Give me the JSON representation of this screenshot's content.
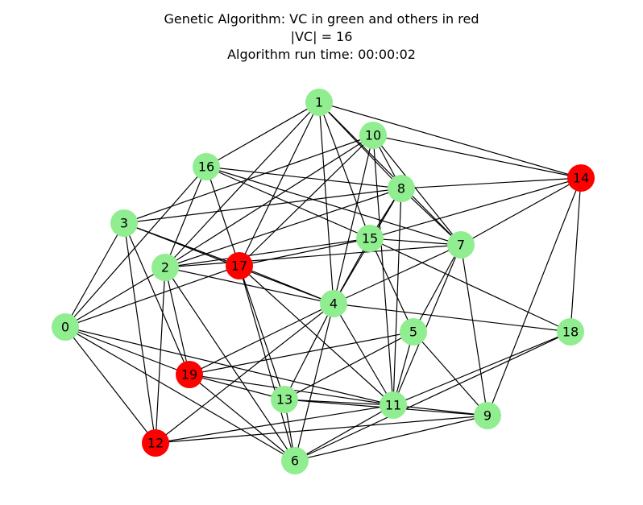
{
  "title": {
    "line1": "Genetic Algorithm: VC in green and others in red",
    "line2": "|VC| = 16",
    "line3": "Algorithm run time: 00:00:02"
  },
  "colors": {
    "vc_node": "#90ee90",
    "other_node": "#ff0000",
    "edge": "#000000"
  },
  "graph": {
    "nodes": [
      {
        "id": "0",
        "in_vc": true
      },
      {
        "id": "1",
        "in_vc": true
      },
      {
        "id": "2",
        "in_vc": true
      },
      {
        "id": "3",
        "in_vc": true
      },
      {
        "id": "4",
        "in_vc": true
      },
      {
        "id": "5",
        "in_vc": true
      },
      {
        "id": "6",
        "in_vc": true
      },
      {
        "id": "7",
        "in_vc": true
      },
      {
        "id": "8",
        "in_vc": true
      },
      {
        "id": "9",
        "in_vc": true
      },
      {
        "id": "10",
        "in_vc": true
      },
      {
        "id": "11",
        "in_vc": true
      },
      {
        "id": "12",
        "in_vc": false
      },
      {
        "id": "13",
        "in_vc": true
      },
      {
        "id": "14",
        "in_vc": false
      },
      {
        "id": "15",
        "in_vc": true
      },
      {
        "id": "16",
        "in_vc": true
      },
      {
        "id": "17",
        "in_vc": false
      },
      {
        "id": "18",
        "in_vc": true
      },
      {
        "id": "19",
        "in_vc": false
      }
    ],
    "edges": [
      [
        "1",
        "16"
      ],
      [
        "1",
        "17"
      ],
      [
        "1",
        "2"
      ],
      [
        "1",
        "4"
      ],
      [
        "1",
        "15"
      ],
      [
        "1",
        "8"
      ],
      [
        "1",
        "7"
      ],
      [
        "1",
        "14"
      ],
      [
        "10",
        "3"
      ],
      [
        "10",
        "2"
      ],
      [
        "10",
        "17"
      ],
      [
        "10",
        "4"
      ],
      [
        "10",
        "8"
      ],
      [
        "10",
        "7"
      ],
      [
        "10",
        "14"
      ],
      [
        "10",
        "11"
      ],
      [
        "16",
        "2"
      ],
      [
        "16",
        "0"
      ],
      [
        "16",
        "17"
      ],
      [
        "16",
        "8"
      ],
      [
        "16",
        "15"
      ],
      [
        "16",
        "7"
      ],
      [
        "8",
        "3"
      ],
      [
        "8",
        "2"
      ],
      [
        "8",
        "4"
      ],
      [
        "8",
        "11"
      ],
      [
        "8",
        "14"
      ],
      [
        "8",
        "7"
      ],
      [
        "8",
        "15"
      ],
      [
        "14",
        "15"
      ],
      [
        "14",
        "7"
      ],
      [
        "14",
        "18"
      ],
      [
        "14",
        "9"
      ],
      [
        "3",
        "0"
      ],
      [
        "3",
        "17"
      ],
      [
        "3",
        "4"
      ],
      [
        "3",
        "19"
      ],
      [
        "3",
        "12"
      ],
      [
        "15",
        "17"
      ],
      [
        "15",
        "2"
      ],
      [
        "15",
        "4"
      ],
      [
        "15",
        "5"
      ],
      [
        "15",
        "7"
      ],
      [
        "15",
        "18"
      ],
      [
        "7",
        "2"
      ],
      [
        "7",
        "4"
      ],
      [
        "7",
        "5"
      ],
      [
        "7",
        "11"
      ],
      [
        "7",
        "9"
      ],
      [
        "2",
        "0"
      ],
      [
        "2",
        "4"
      ],
      [
        "2",
        "19"
      ],
      [
        "2",
        "12"
      ],
      [
        "2",
        "6"
      ],
      [
        "17",
        "0"
      ],
      [
        "17",
        "4"
      ],
      [
        "17",
        "13"
      ],
      [
        "17",
        "11"
      ],
      [
        "17",
        "6"
      ],
      [
        "4",
        "13"
      ],
      [
        "4",
        "11"
      ],
      [
        "4",
        "6"
      ],
      [
        "4",
        "18"
      ],
      [
        "4",
        "19"
      ],
      [
        "4",
        "12"
      ],
      [
        "0",
        "19"
      ],
      [
        "0",
        "6"
      ],
      [
        "0",
        "12"
      ],
      [
        "0",
        "11"
      ],
      [
        "5",
        "19"
      ],
      [
        "5",
        "13"
      ],
      [
        "5",
        "11"
      ],
      [
        "5",
        "9"
      ],
      [
        "19",
        "11"
      ],
      [
        "19",
        "6"
      ],
      [
        "19",
        "13"
      ],
      [
        "13",
        "11"
      ],
      [
        "13",
        "9"
      ],
      [
        "13",
        "6"
      ],
      [
        "11",
        "9"
      ],
      [
        "11",
        "18"
      ],
      [
        "11",
        "6"
      ],
      [
        "18",
        "6"
      ],
      [
        "12",
        "9"
      ],
      [
        "12",
        "11"
      ],
      [
        "9",
        "6"
      ]
    ]
  }
}
